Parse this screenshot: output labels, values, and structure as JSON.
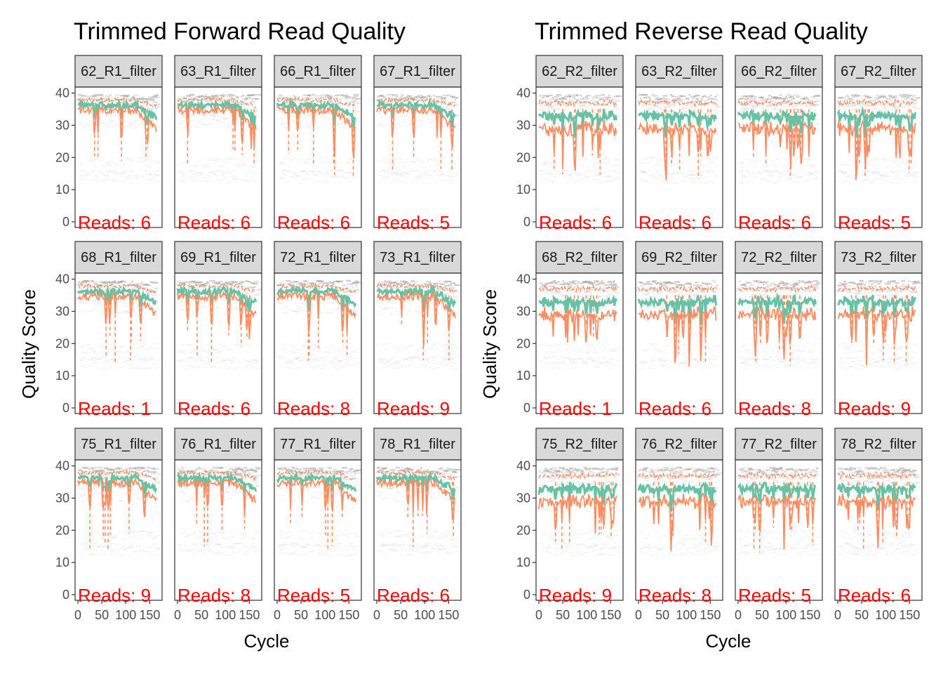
{
  "chart_data": [
    {
      "type": "line",
      "title": "Trimmed Forward Read Quality",
      "xlabel": "Cycle",
      "ylabel": "Quality Score",
      "xlim": [
        0,
        170
      ],
      "ylim": [
        0,
        41
      ],
      "x_ticks": [
        "0",
        "50",
        "100",
        "150"
      ],
      "y_ticks": [
        "0",
        "10",
        "20",
        "30",
        "40"
      ],
      "series_colors": {
        "mean": "#66c2a5",
        "quartiles": "#fc8d62",
        "heatmap": "#999999"
      },
      "panels": [
        {
          "label": "62_R1_filter",
          "reads_label": "Reads:  6"
        },
        {
          "label": "63_R1_filter",
          "reads_label": "Reads:  6"
        },
        {
          "label": "66_R1_filter",
          "reads_label": "Reads:  6"
        },
        {
          "label": "67_R1_filter",
          "reads_label": "Reads:  5"
        },
        {
          "label": "68_R1_filter",
          "reads_label": "Reads:  1"
        },
        {
          "label": "69_R1_filter",
          "reads_label": "Reads:  6"
        },
        {
          "label": "72_R1_filter",
          "reads_label": "Reads:  8"
        },
        {
          "label": "73_R1_filter",
          "reads_label": "Reads:  9"
        },
        {
          "label": "75_R1_filter",
          "reads_label": "Reads:  9"
        },
        {
          "label": "76_R1_filter",
          "reads_label": "Reads:  8"
        },
        {
          "label": "77_R1_filter",
          "reads_label": "Reads:  5"
        },
        {
          "label": "78_R1_filter",
          "reads_label": "Reads:  6"
        }
      ]
    },
    {
      "type": "line",
      "title": "Trimmed Reverse Read Quality",
      "xlabel": "Cycle",
      "ylabel": "Quality Score",
      "xlim": [
        0,
        170
      ],
      "ylim": [
        0,
        41
      ],
      "x_ticks": [
        "0",
        "50",
        "100",
        "150"
      ],
      "y_ticks": [
        "0",
        "10",
        "20",
        "30",
        "40"
      ],
      "series_colors": {
        "mean": "#66c2a5",
        "quartiles": "#fc8d62",
        "heatmap": "#999999"
      },
      "panels": [
        {
          "label": "62_R2_filter",
          "reads_label": "Reads:  6"
        },
        {
          "label": "63_R2_filter",
          "reads_label": "Reads:  6"
        },
        {
          "label": "66_R2_filter",
          "reads_label": "Reads:  6"
        },
        {
          "label": "67_R2_filter",
          "reads_label": "Reads:  5"
        },
        {
          "label": "68_R2_filter",
          "reads_label": "Reads:  1"
        },
        {
          "label": "69_R2_filter",
          "reads_label": "Reads:  6"
        },
        {
          "label": "72_R2_filter",
          "reads_label": "Reads:  8"
        },
        {
          "label": "73_R2_filter",
          "reads_label": "Reads:  9"
        },
        {
          "label": "75_R2_filter",
          "reads_label": "Reads:  9"
        },
        {
          "label": "76_R2_filter",
          "reads_label": "Reads:  8"
        },
        {
          "label": "77_R2_filter",
          "reads_label": "Reads:  5"
        },
        {
          "label": "78_R2_filter",
          "reads_label": "Reads:  6"
        }
      ]
    }
  ]
}
